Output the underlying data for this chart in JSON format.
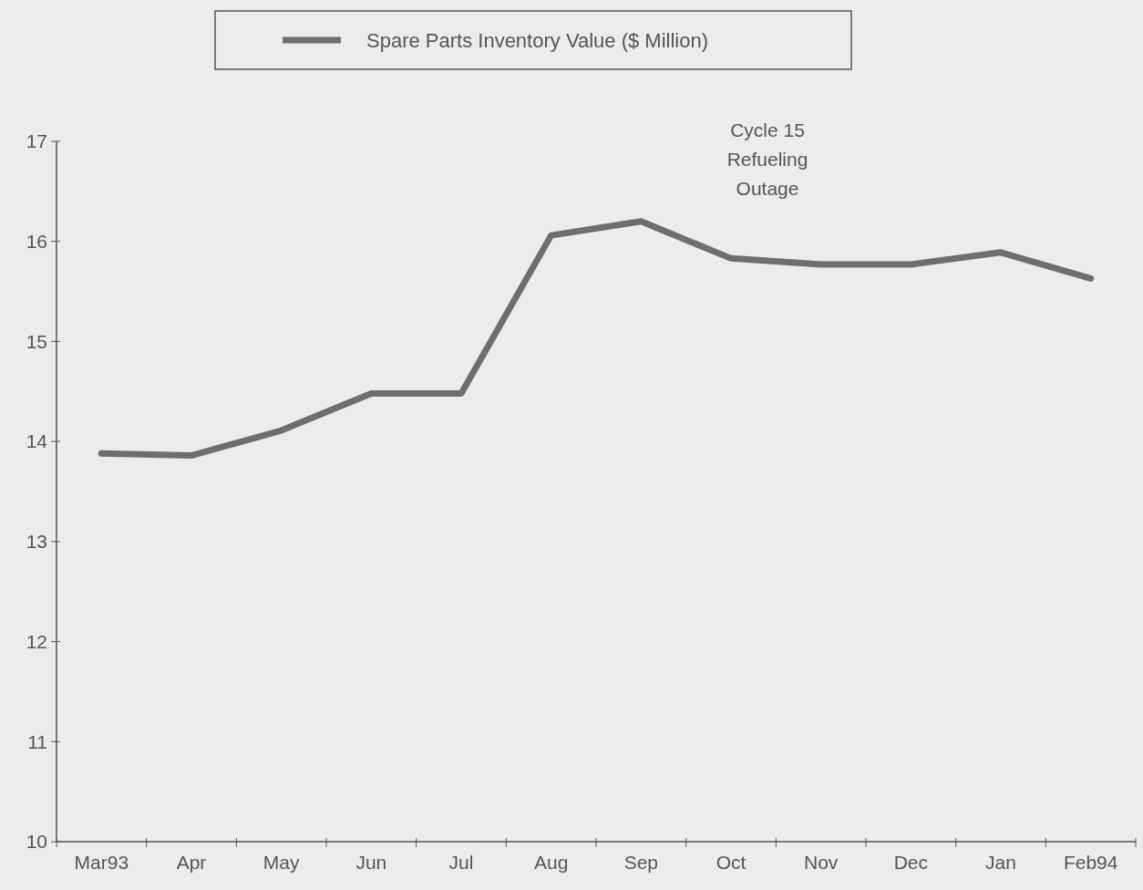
{
  "chart_data": {
    "type": "line",
    "categories": [
      "Mar93",
      "Apr",
      "May",
      "Jun",
      "Jul",
      "Aug",
      "Sep",
      "Oct",
      "Nov",
      "Dec",
      "Jan",
      "Feb94"
    ],
    "series": [
      {
        "name": "Spare Parts Inventory Value ($ Million)",
        "color": "#6e6e6e",
        "values": [
          13.88,
          13.86,
          14.11,
          14.48,
          14.48,
          16.06,
          16.2,
          15.83,
          15.77,
          15.77,
          15.89,
          15.63
        ]
      }
    ],
    "ylim": [
      10,
      17
    ],
    "yticks": [
      10,
      11,
      12,
      13,
      14,
      15,
      16,
      17
    ],
    "grid": false,
    "legend": "top",
    "marker": "none",
    "line_style": "solid",
    "annotations": [
      "Cycle 15\nRefueling\nOutage"
    ]
  }
}
